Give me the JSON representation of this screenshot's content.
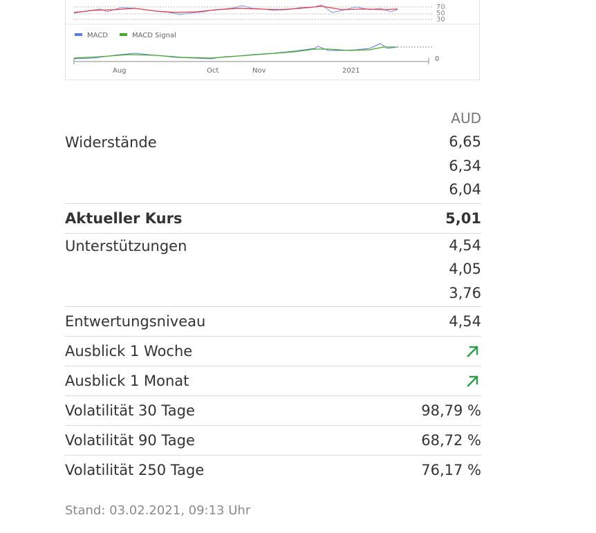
{
  "chart": {
    "rsi_levels": [
      "70",
      "50",
      "30"
    ],
    "legend": [
      {
        "name": "MACD",
        "color": "#5b7bdc"
      },
      {
        "name": "MACD Signal",
        "color": "#4aa82a"
      }
    ],
    "macd_zero_label": "0",
    "x_labels": [
      "Aug",
      "Oct",
      "Nov",
      "2021"
    ],
    "colors": {
      "rsi_blue": "#7d95e0",
      "rsi_red": "#e53a4a"
    }
  },
  "table": {
    "currency": "AUD",
    "resistances": {
      "label": "Widerstände",
      "values": [
        "6,65",
        "6,34",
        "6,04"
      ]
    },
    "current": {
      "label": "Aktueller Kurs",
      "value": "5,01"
    },
    "supports": {
      "label": "Unterstützungen",
      "values": [
        "4,54",
        "4,05",
        "3,76"
      ]
    },
    "devaluation": {
      "label": "Entwertungsniveau",
      "value": "4,54"
    },
    "outlook_week": {
      "label": "Ausblick 1 Woche",
      "icon": "arrow-up-right-icon"
    },
    "outlook_month": {
      "label": "Ausblick 1 Monat",
      "icon": "arrow-up-right-icon"
    },
    "vol30": {
      "label": "Volatilität 30 Tage",
      "value": "98,79 %"
    },
    "vol90": {
      "label": "Volatilität 90 Tage",
      "value": "68,72 %"
    },
    "vol250": {
      "label": "Volatilität 250 Tage",
      "value": "76,17 %"
    }
  },
  "footer": {
    "stand": "Stand: 03.02.2021, 09:13 Uhr"
  },
  "colors": {
    "arrow_green": "#2e9a4a"
  }
}
